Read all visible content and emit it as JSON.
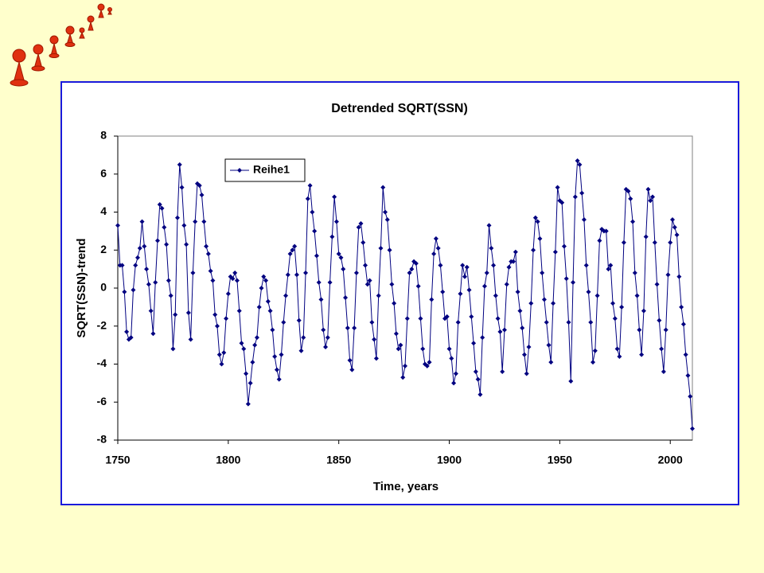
{
  "chart_data": {
    "type": "line",
    "title": "Detrended SQRT(SSN)",
    "x_label": "Time, years",
    "y_label": "SQRT(SSN)-trend",
    "x": [
      1750,
      1751,
      1752,
      1753,
      1754,
      1755,
      1756,
      1757,
      1758,
      1759,
      1760,
      1761,
      1762,
      1763,
      1764,
      1765,
      1766,
      1767,
      1768,
      1769,
      1770,
      1771,
      1772,
      1773,
      1774,
      1775,
      1776,
      1777,
      1778,
      1779,
      1780,
      1781,
      1782,
      1783,
      1784,
      1785,
      1786,
      1787,
      1788,
      1789,
      1790,
      1791,
      1792,
      1793,
      1794,
      1795,
      1796,
      1797,
      1798,
      1799,
      1800,
      1801,
      1802,
      1803,
      1804,
      1805,
      1806,
      1807,
      1808,
      1809,
      1810,
      1811,
      1812,
      1813,
      1814,
      1815,
      1816,
      1817,
      1818,
      1819,
      1820,
      1821,
      1822,
      1823,
      1824,
      1825,
      1826,
      1827,
      1828,
      1829,
      1830,
      1831,
      1832,
      1833,
      1834,
      1835,
      1836,
      1837,
      1838,
      1839,
      1840,
      1841,
      1842,
      1843,
      1844,
      1845,
      1846,
      1847,
      1848,
      1849,
      1850,
      1851,
      1852,
      1853,
      1854,
      1855,
      1856,
      1857,
      1858,
      1859,
      1860,
      1861,
      1862,
      1863,
      1864,
      1865,
      1866,
      1867,
      1868,
      1869,
      1870,
      1871,
      1872,
      1873,
      1874,
      1875,
      1876,
      1877,
      1878,
      1879,
      1880,
      1881,
      1882,
      1883,
      1884,
      1885,
      1886,
      1887,
      1888,
      1889,
      1890,
      1891,
      1892,
      1893,
      1894,
      1895,
      1896,
      1897,
      1898,
      1899,
      1900,
      1901,
      1902,
      1903,
      1904,
      1905,
      1906,
      1907,
      1908,
      1909,
      1910,
      1911,
      1912,
      1913,
      1914,
      1915,
      1916,
      1917,
      1918,
      1919,
      1920,
      1921,
      1922,
      1923,
      1924,
      1925,
      1926,
      1927,
      1928,
      1929,
      1930,
      1931,
      1932,
      1933,
      1934,
      1935,
      1936,
      1937,
      1938,
      1939,
      1940,
      1941,
      1942,
      1943,
      1944,
      1945,
      1946,
      1947,
      1948,
      1949,
      1950,
      1951,
      1952,
      1953,
      1954,
      1955,
      1956,
      1957,
      1958,
      1959,
      1960,
      1961,
      1962,
      1963,
      1964,
      1965,
      1966,
      1967,
      1968,
      1969,
      1970,
      1971,
      1972,
      1973,
      1974,
      1975,
      1976,
      1977,
      1978,
      1979,
      1980,
      1981,
      1982,
      1983,
      1984,
      1985,
      1986,
      1987,
      1988,
      1989,
      1990,
      1991,
      1992,
      1993,
      1994,
      1995,
      1996,
      1997,
      1998,
      1999,
      2000,
      2001,
      2002,
      2003,
      2004,
      2005,
      2006,
      2007,
      2008,
      2009,
      2010
    ],
    "series": [
      {
        "name": "Reihe1",
        "color": "#000080",
        "values": [
          3.3,
          1.2,
          1.2,
          -0.2,
          -2.3,
          -2.7,
          -2.6,
          -0.1,
          1.2,
          1.6,
          2.1,
          3.5,
          2.2,
          1.0,
          0.2,
          -1.2,
          -2.4,
          0.3,
          2.5,
          4.4,
          4.2,
          3.2,
          2.3,
          0.4,
          -0.4,
          -3.2,
          -1.4,
          3.7,
          6.5,
          5.3,
          3.3,
          2.3,
          -1.3,
          -2.7,
          0.8,
          3.5,
          5.5,
          5.4,
          4.9,
          3.5,
          2.2,
          1.8,
          0.9,
          0.4,
          -1.4,
          -2.0,
          -3.5,
          -4.0,
          -3.4,
          -1.6,
          -0.3,
          0.6,
          0.5,
          0.8,
          0.4,
          -1.2,
          -2.9,
          -3.2,
          -4.5,
          -6.1,
          -5.0,
          -3.9,
          -3.0,
          -2.6,
          -1.0,
          0.0,
          0.6,
          0.4,
          -0.7,
          -1.2,
          -2.2,
          -3.6,
          -4.3,
          -4.8,
          -3.5,
          -1.8,
          -0.4,
          0.7,
          1.8,
          2.0,
          2.2,
          0.7,
          -1.7,
          -3.3,
          -2.6,
          0.8,
          4.7,
          5.4,
          4.0,
          3.0,
          1.7,
          0.3,
          -0.6,
          -2.2,
          -3.1,
          -2.6,
          0.3,
          2.7,
          4.8,
          3.5,
          1.8,
          1.6,
          1.0,
          -0.5,
          -2.1,
          -3.8,
          -4.3,
          -2.1,
          0.8,
          3.2,
          3.4,
          2.4,
          1.2,
          0.2,
          0.4,
          -1.8,
          -2.7,
          -3.7,
          -0.4,
          2.1,
          5.3,
          4.0,
          3.6,
          2.0,
          0.2,
          -0.8,
          -2.4,
          -3.2,
          -3.0,
          -4.7,
          -4.1,
          -1.6,
          0.8,
          1.0,
          1.4,
          1.3,
          0.1,
          -1.6,
          -3.2,
          -4.0,
          -4.1,
          -3.9,
          -0.6,
          1.8,
          2.6,
          2.1,
          1.2,
          -0.2,
          -1.6,
          -1.5,
          -3.2,
          -3.7,
          -5.0,
          -4.5,
          -1.8,
          -0.3,
          1.2,
          0.6,
          1.1,
          -0.1,
          -1.5,
          -2.9,
          -4.4,
          -4.8,
          -5.6,
          -2.6,
          0.1,
          0.8,
          3.3,
          2.1,
          1.2,
          -0.4,
          -1.6,
          -2.3,
          -4.4,
          -2.2,
          0.2,
          1.1,
          1.4,
          1.4,
          1.9,
          -0.2,
          -1.2,
          -2.1,
          -3.5,
          -4.5,
          -3.1,
          -0.8,
          2.0,
          3.7,
          3.5,
          2.6,
          0.8,
          -0.6,
          -1.8,
          -3.0,
          -3.9,
          -0.8,
          1.9,
          5.3,
          4.6,
          4.5,
          2.2,
          0.5,
          -1.8,
          -4.9,
          0.3,
          4.8,
          6.7,
          6.5,
          5.0,
          3.6,
          1.2,
          -0.2,
          -1.8,
          -3.9,
          -3.3,
          -0.4,
          2.5,
          3.1,
          3.0,
          3.0,
          1.0,
          1.2,
          -0.8,
          -1.6,
          -3.2,
          -3.6,
          -1.0,
          2.4,
          5.2,
          5.1,
          4.7,
          3.5,
          0.8,
          -0.4,
          -2.2,
          -3.5,
          -1.2,
          2.7,
          5.2,
          4.6,
          4.8,
          2.4,
          0.2,
          -1.7,
          -3.2,
          -4.4,
          -2.2,
          0.7,
          2.4,
          3.6,
          3.2,
          2.8,
          0.6,
          -1.0,
          -1.9,
          -3.5,
          -4.6,
          -5.7,
          -7.4
        ]
      }
    ],
    "xlim": [
      1750,
      2010
    ],
    "xticks": [
      1750,
      1800,
      1850,
      1900,
      1950,
      2000
    ],
    "ylim": [
      -8,
      8
    ],
    "yticks": [
      -8,
      -6,
      -4,
      -2,
      0,
      2,
      4,
      6,
      8
    ],
    "legend": "upper left"
  }
}
